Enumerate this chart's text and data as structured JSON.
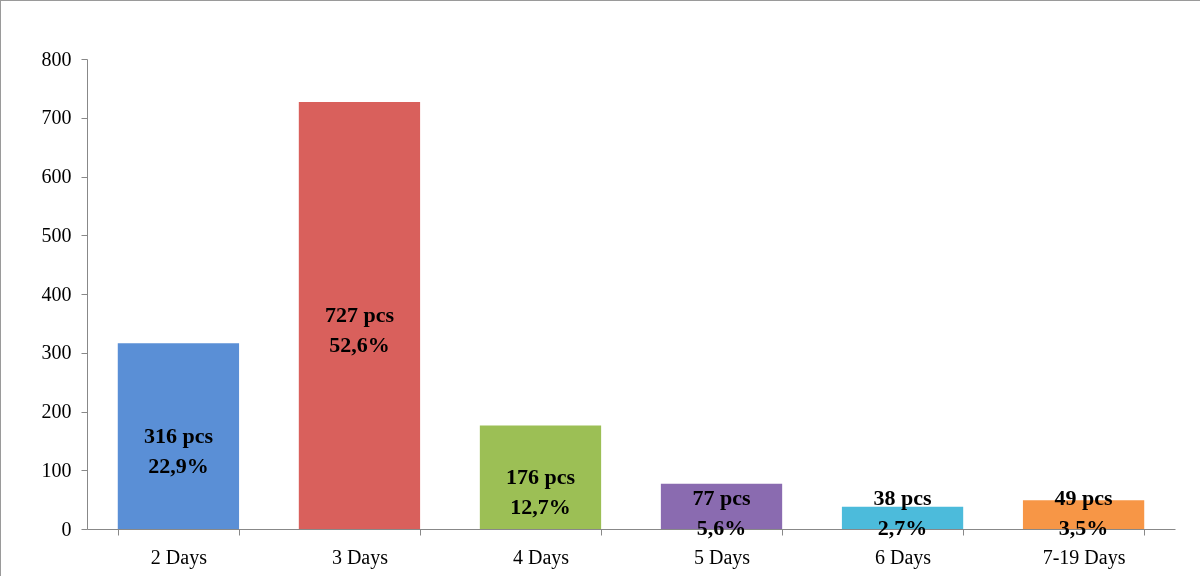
{
  "chart_data": {
    "type": "bar",
    "categories": [
      "2 Days",
      "3 Days",
      "4 Days",
      "5 Days",
      "6 Days",
      "7-19 Days"
    ],
    "values": [
      316,
      727,
      176,
      77,
      38,
      49
    ],
    "colors": [
      "#5a8fd6",
      "#d9605c",
      "#9cbf55",
      "#8a6bb0",
      "#4cbbdb",
      "#f79646"
    ],
    "value_labels": [
      "316 pcs\n22,9%",
      "727 pcs\n52,6%",
      "176 pcs\n12,7%",
      "77 pcs\n5,6%",
      "38 pcs\n2,7%",
      "49 pcs\n3,5%"
    ],
    "ylim": [
      0,
      800
    ],
    "yticks": [
      0,
      100,
      200,
      300,
      400,
      500,
      600,
      700,
      800
    ],
    "grid": false
  }
}
